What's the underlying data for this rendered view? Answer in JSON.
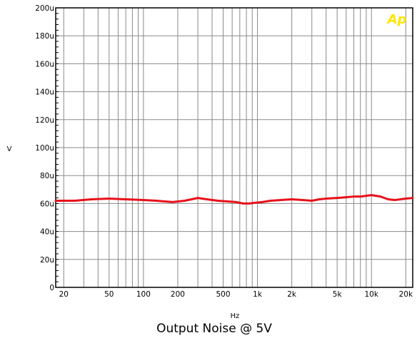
{
  "chart_data": {
    "type": "line",
    "title": "Output Noise @ 5V",
    "xlabel": "Hz",
    "ylabel": "V",
    "logo": "Ap",
    "x_scale": "log",
    "xlim": [
      17,
      23000
    ],
    "ylim": [
      0,
      200
    ],
    "grid": true,
    "x_ticks": [
      {
        "value": 20,
        "label": "20"
      },
      {
        "value": 50,
        "label": "50"
      },
      {
        "value": 100,
        "label": "100"
      },
      {
        "value": 200,
        "label": "200"
      },
      {
        "value": 500,
        "label": "500"
      },
      {
        "value": 1000,
        "label": "1k"
      },
      {
        "value": 2000,
        "label": "2k"
      },
      {
        "value": 5000,
        "label": "5k"
      },
      {
        "value": 10000,
        "label": "10k"
      },
      {
        "value": 20000,
        "label": "20k"
      }
    ],
    "y_ticks": [
      {
        "value": 0,
        "label": "0"
      },
      {
        "value": 20,
        "label": "20u"
      },
      {
        "value": 40,
        "label": "40u"
      },
      {
        "value": 60,
        "label": "60u"
      },
      {
        "value": 80,
        "label": "80u"
      },
      {
        "value": 100,
        "label": "100u"
      },
      {
        "value": 120,
        "label": "120u"
      },
      {
        "value": 140,
        "label": "140u"
      },
      {
        "value": 160,
        "label": "160u"
      },
      {
        "value": 180,
        "label": "180u"
      },
      {
        "value": 200,
        "label": "200u"
      }
    ],
    "series": [
      {
        "color": "#e8101a",
        "x": [
          17,
          25,
          35,
          50,
          70,
          100,
          130,
          180,
          230,
          300,
          360,
          450,
          550,
          650,
          750,
          850,
          950,
          1100,
          1300,
          1600,
          2000,
          2500,
          3000,
          3500,
          4000,
          5000,
          6000,
          7000,
          8000,
          9000,
          10000,
          11000,
          12000,
          13000,
          14000,
          16000,
          18000,
          20000,
          23000
        ],
        "y": [
          62,
          62,
          63,
          63.5,
          63,
          62.5,
          62,
          61,
          62,
          64,
          63,
          62,
          61.5,
          61,
          60,
          60,
          60.5,
          61,
          62,
          62.5,
          63,
          62.5,
          62,
          63,
          63.5,
          64,
          64.5,
          65,
          65,
          65.5,
          66,
          65.5,
          65,
          64,
          63,
          62.5,
          63,
          63.5,
          64
        ]
      }
    ]
  }
}
